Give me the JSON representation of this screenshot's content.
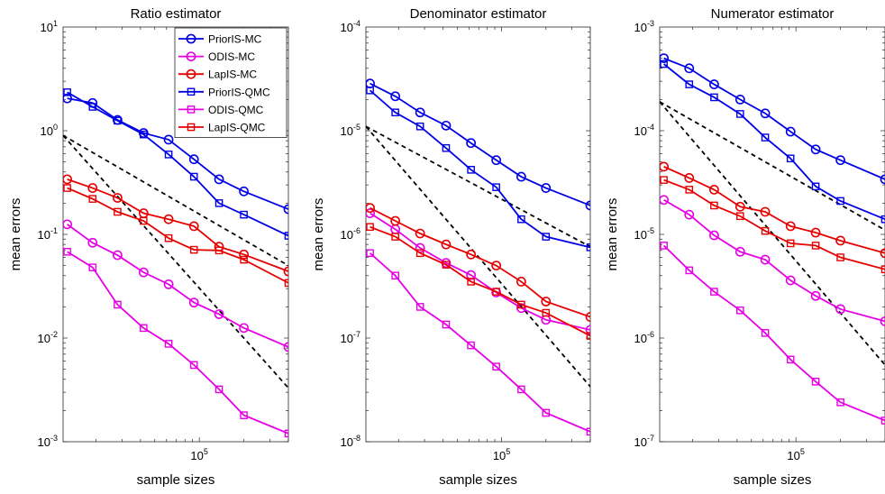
{
  "figure": {
    "panels": [
      "Ratio estimator",
      "Denominator estimator",
      "Numerator estimator"
    ]
  },
  "colors": {
    "blue": "#0000e6",
    "magenta": "#e600e6",
    "red": "#e60000",
    "reference": "#000000"
  },
  "legend_location": "top-right of first panel",
  "chart_data": [
    {
      "type": "line",
      "title": "Ratio estimator",
      "xlabel": "sample sizes",
      "ylabel": "mean errors",
      "xscale": "log",
      "yscale": "log",
      "xlim": [
        12000,
        400000
      ],
      "ylim": [
        0.001,
        10
      ],
      "xticks": [
        {
          "base": "10",
          "exp": "5",
          "value": 100000
        }
      ],
      "yticks": [
        {
          "base": "10",
          "exp": "-3",
          "value": 0.001
        },
        {
          "base": "10",
          "exp": "-2",
          "value": 0.01
        },
        {
          "base": "10",
          "exp": "-1",
          "value": 0.1
        },
        {
          "base": "10",
          "exp": "0",
          "value": 1
        },
        {
          "base": "10",
          "exp": "1",
          "value": 10
        }
      ],
      "x": [
        12800,
        19000,
        28000,
        42000,
        62000,
        92000,
        136000,
        200000,
        400000
      ],
      "series": [
        {
          "name": "PriorIS-MC",
          "color": "blue",
          "marker": "circle",
          "values": [
            2.05,
            1.85,
            1.27,
            0.95,
            0.82,
            0.53,
            0.34,
            0.26,
            0.175
          ]
        },
        {
          "name": "ODIS-MC",
          "color": "magenta",
          "marker": "circle",
          "values": [
            0.125,
            0.083,
            0.063,
            0.043,
            0.033,
            0.022,
            0.017,
            0.0125,
            0.0082
          ]
        },
        {
          "name": "LapIS-MC",
          "color": "red",
          "marker": "circle",
          "values": [
            0.34,
            0.28,
            0.225,
            0.16,
            0.14,
            0.12,
            0.076,
            0.064,
            0.044
          ]
        },
        {
          "name": "PriorIS-QMC",
          "color": "blue",
          "marker": "square",
          "values": [
            2.35,
            1.7,
            1.25,
            0.92,
            0.59,
            0.36,
            0.2,
            0.155,
            0.097
          ]
        },
        {
          "name": "ODIS-QMC",
          "color": "magenta",
          "marker": "square",
          "values": [
            0.068,
            0.048,
            0.021,
            0.0125,
            0.0088,
            0.0055,
            0.0032,
            0.0018,
            0.0012
          ]
        },
        {
          "name": "LapIS-QMC",
          "color": "red",
          "marker": "square",
          "values": [
            0.28,
            0.22,
            0.165,
            0.135,
            0.092,
            0.071,
            0.07,
            0.057,
            0.034
          ]
        }
      ],
      "reference_lines": [
        {
          "style": "dashed",
          "x": [
            12000,
            400000
          ],
          "y": [
            0.9,
            0.05
          ]
        },
        {
          "style": "dashed",
          "x": [
            12000,
            400000
          ],
          "y": [
            0.9,
            0.0033
          ]
        }
      ]
    },
    {
      "type": "line",
      "title": "Denominator estimator",
      "xlabel": "sample sizes",
      "ylabel": "mean errors",
      "xscale": "log",
      "yscale": "log",
      "xlim": [
        12000,
        400000
      ],
      "ylim": [
        1e-08,
        0.0001
      ],
      "xticks": [
        {
          "base": "10",
          "exp": "5",
          "value": 100000
        }
      ],
      "yticks": [
        {
          "base": "10",
          "exp": "-8",
          "value": 1e-08
        },
        {
          "base": "10",
          "exp": "-7",
          "value": 1e-07
        },
        {
          "base": "10",
          "exp": "-6",
          "value": 1e-06
        },
        {
          "base": "10",
          "exp": "-5",
          "value": 1e-05
        },
        {
          "base": "10",
          "exp": "-4",
          "value": 0.0001
        }
      ],
      "x": [
        12800,
        19000,
        28000,
        42000,
        62000,
        92000,
        136000,
        200000,
        400000
      ],
      "series": [
        {
          "name": "PriorIS-MC",
          "color": "blue",
          "marker": "circle",
          "values": [
            2.85e-05,
            2.15e-05,
            1.5e-05,
            1.12e-05,
            7.6e-06,
            5.2e-06,
            3.6e-06,
            2.8e-06,
            1.9e-06
          ]
        },
        {
          "name": "ODIS-MC",
          "color": "magenta",
          "marker": "circle",
          "values": [
            1.6e-06,
            1.12e-06,
            7.4e-07,
            5.3e-07,
            4.05e-07,
            2.75e-07,
            1.95e-07,
            1.5e-07,
            1.2e-07
          ]
        },
        {
          "name": "LapIS-MC",
          "color": "red",
          "marker": "circle",
          "values": [
            1.8e-06,
            1.35e-06,
            1.02e-06,
            8e-07,
            6.4e-07,
            5e-07,
            3.5e-07,
            2.25e-07,
            1.6e-07
          ]
        },
        {
          "name": "PriorIS-QMC",
          "color": "blue",
          "marker": "square",
          "values": [
            2.45e-05,
            1.5e-05,
            1.1e-05,
            6.8e-06,
            4.2e-06,
            2.85e-06,
            1.4e-06,
            9.5e-07,
            7.5e-07
          ]
        },
        {
          "name": "ODIS-QMC",
          "color": "magenta",
          "marker": "square",
          "values": [
            6.6e-07,
            4e-07,
            2e-07,
            1.35e-07,
            8.5e-08,
            5.3e-08,
            3.2e-08,
            1.9e-08,
            1.25e-08
          ]
        },
        {
          "name": "LapIS-QMC",
          "color": "red",
          "marker": "square",
          "values": [
            1.18e-06,
            9.5e-07,
            6.6e-07,
            5.1e-07,
            3.5e-07,
            2.8e-07,
            2.1e-07,
            1.75e-07,
            1.05e-07
          ]
        }
      ],
      "reference_lines": [
        {
          "style": "dashed",
          "x": [
            12000,
            400000
          ],
          "y": [
            1.1e-05,
            7.6e-07
          ]
        },
        {
          "style": "dashed",
          "x": [
            12000,
            400000
          ],
          "y": [
            1.1e-05,
            3.4e-08
          ]
        }
      ]
    },
    {
      "type": "line",
      "title": "Numerator estimator",
      "xlabel": "sample sizes",
      "ylabel": "mean errors",
      "xscale": "log",
      "yscale": "log",
      "xlim": [
        12000,
        400000
      ],
      "ylim": [
        1e-07,
        0.001
      ],
      "xticks": [
        {
          "base": "10",
          "exp": "5",
          "value": 100000
        }
      ],
      "yticks": [
        {
          "base": "10",
          "exp": "-7",
          "value": 1e-07
        },
        {
          "base": "10",
          "exp": "-6",
          "value": 1e-06
        },
        {
          "base": "10",
          "exp": "-5",
          "value": 1e-05
        },
        {
          "base": "10",
          "exp": "-4",
          "value": 0.0001
        },
        {
          "base": "10",
          "exp": "-3",
          "value": 0.001
        }
      ],
      "x": [
        12800,
        19000,
        28000,
        42000,
        62000,
        92000,
        136000,
        200000,
        400000
      ],
      "series": [
        {
          "name": "PriorIS-MC",
          "color": "blue",
          "marker": "circle",
          "values": [
            0.0005,
            0.0004,
            0.00028,
            0.0002,
            0.000147,
            9.8e-05,
            6.6e-05,
            5.2e-05,
            3.4e-05
          ]
        },
        {
          "name": "ODIS-MC",
          "color": "magenta",
          "marker": "circle",
          "values": [
            2.15e-05,
            1.55e-05,
            9.8e-06,
            6.8e-06,
            5.7e-06,
            3.6e-06,
            2.55e-06,
            1.9e-06,
            1.45e-06
          ]
        },
        {
          "name": "LapIS-MC",
          "color": "red",
          "marker": "circle",
          "values": [
            4.5e-05,
            3.5e-05,
            2.7e-05,
            1.85e-05,
            1.65e-05,
            1.2e-05,
            1.04e-05,
            8.7e-06,
            6.6e-06
          ]
        },
        {
          "name": "PriorIS-QMC",
          "color": "blue",
          "marker": "square",
          "values": [
            0.00044,
            0.00028,
            0.00021,
            0.000145,
            8.6e-05,
            5.4e-05,
            2.9e-05,
            2.1e-05,
            1.4e-05
          ]
        },
        {
          "name": "ODIS-QMC",
          "color": "magenta",
          "marker": "square",
          "values": [
            7.8e-06,
            4.5e-06,
            2.8e-06,
            1.85e-06,
            1.12e-06,
            6.2e-07,
            3.8e-07,
            2.4e-07,
            1.6e-07
          ]
        },
        {
          "name": "LapIS-QMC",
          "color": "red",
          "marker": "square",
          "values": [
            3.35e-05,
            2.7e-05,
            1.9e-05,
            1.5e-05,
            1.08e-05,
            8.2e-06,
            7.8e-06,
            6e-06,
            4.6e-06
          ]
        }
      ],
      "reference_lines": [
        {
          "style": "dashed",
          "x": [
            12000,
            400000
          ],
          "y": [
            0.00019,
            1.1e-05
          ]
        },
        {
          "style": "dashed",
          "x": [
            12000,
            400000
          ],
          "y": [
            0.00019,
            5.5e-07
          ]
        }
      ]
    }
  ]
}
